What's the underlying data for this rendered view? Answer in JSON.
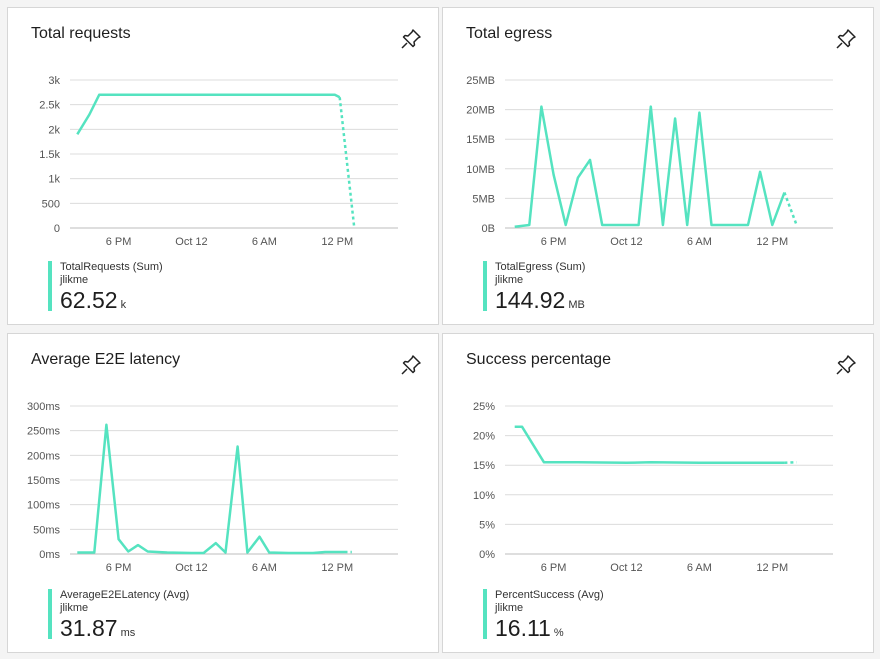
{
  "accent": "#55e3c0",
  "pin_icon": "pin-icon",
  "tiles": [
    {
      "title": "Total requests",
      "legend": {
        "series": "TotalRequests (Sum)",
        "resource": "jlikme",
        "value": "62.52",
        "unit": "k"
      },
      "chart_data": {
        "type": "line",
        "y_ticks": [
          "3k",
          "2.5k",
          "2k",
          "1.5k",
          "1k",
          "500",
          "0"
        ],
        "y_values": [
          3000,
          2500,
          2000,
          1500,
          1000,
          500,
          0
        ],
        "ylim": [
          0,
          3000
        ],
        "x_ticks": [
          "6 PM",
          "Oct 12",
          "6 AM",
          "12 PM"
        ],
        "x_tick_pos": [
          2,
          5,
          8,
          11
        ],
        "xlim": [
          0,
          13.5
        ],
        "series": [
          {
            "points": [
              [
                0.3,
                1900
              ],
              [
                0.8,
                2300
              ],
              [
                1.2,
                2700
              ],
              [
                2,
                2700
              ],
              [
                5,
                2700
              ],
              [
                8,
                2700
              ],
              [
                10,
                2700
              ],
              [
                10.9,
                2700
              ],
              [
                11.1,
                2650
              ]
            ],
            "dashed": [
              [
                11.1,
                2650
              ],
              [
                11.7,
                0
              ]
            ]
          }
        ],
        "grid": true
      }
    },
    {
      "title": "Total egress",
      "legend": {
        "series": "TotalEgress (Sum)",
        "resource": "jlikme",
        "value": "144.92",
        "unit": "MB"
      },
      "chart_data": {
        "type": "line",
        "y_ticks": [
          "25MB",
          "20MB",
          "15MB",
          "10MB",
          "5MB",
          "0B"
        ],
        "y_values": [
          25,
          20,
          15,
          10,
          5,
          0
        ],
        "ylim": [
          0,
          25
        ],
        "x_ticks": [
          "6 PM",
          "Oct 12",
          "6 AM",
          "12 PM"
        ],
        "x_tick_pos": [
          2,
          5,
          8,
          11
        ],
        "xlim": [
          0,
          13.5
        ],
        "series": [
          {
            "points": [
              [
                0.4,
                0.2
              ],
              [
                1.0,
                0.5
              ],
              [
                1.5,
                20.5
              ],
              [
                2.0,
                9
              ],
              [
                2.5,
                0.5
              ],
              [
                3.0,
                8.5
              ],
              [
                3.5,
                11.5
              ],
              [
                4.0,
                0.5
              ],
              [
                4.5,
                0.5
              ],
              [
                5,
                0.5
              ],
              [
                5.5,
                0.5
              ],
              [
                6.0,
                20.5
              ],
              [
                6.5,
                0.5
              ],
              [
                7.0,
                18.5
              ],
              [
                7.5,
                0.5
              ],
              [
                8.0,
                19.5
              ],
              [
                8.5,
                0.5
              ],
              [
                9,
                0.5
              ],
              [
                9.5,
                0.5
              ],
              [
                10.0,
                0.5
              ],
              [
                10.5,
                9.5
              ],
              [
                11.0,
                0.5
              ],
              [
                11.5,
                6
              ]
            ],
            "dashed": [
              [
                11.5,
                6
              ],
              [
                12.0,
                0.5
              ]
            ]
          }
        ],
        "grid": true
      }
    },
    {
      "title": "Average E2E latency",
      "legend": {
        "series": "AverageE2ELatency (Avg)",
        "resource": "jlikme",
        "value": "31.87",
        "unit": "ms"
      },
      "chart_data": {
        "type": "line",
        "y_ticks": [
          "300ms",
          "250ms",
          "200ms",
          "150ms",
          "100ms",
          "50ms",
          "0ms"
        ],
        "y_values": [
          300,
          250,
          200,
          150,
          100,
          50,
          0
        ],
        "ylim": [
          0,
          300
        ],
        "x_ticks": [
          "6 PM",
          "Oct 12",
          "6 AM",
          "12 PM"
        ],
        "x_tick_pos": [
          2,
          5,
          8,
          11
        ],
        "xlim": [
          0,
          13.5
        ],
        "series": [
          {
            "points": [
              [
                0.3,
                3
              ],
              [
                1.0,
                3
              ],
              [
                1.5,
                262
              ],
              [
                2.0,
                30
              ],
              [
                2.4,
                5
              ],
              [
                2.8,
                18
              ],
              [
                3.2,
                5
              ],
              [
                4,
                3
              ],
              [
                5,
                2
              ],
              [
                5.5,
                2
              ],
              [
                6.0,
                22
              ],
              [
                6.4,
                3
              ],
              [
                6.9,
                218
              ],
              [
                7.3,
                3
              ],
              [
                7.8,
                35
              ],
              [
                8.2,
                3
              ],
              [
                9,
                2
              ],
              [
                10,
                2
              ],
              [
                10.5,
                4
              ],
              [
                11.3,
                4
              ]
            ],
            "dashed": [
              [
                11.3,
                4
              ],
              [
                11.6,
                4
              ]
            ]
          }
        ],
        "grid": true
      }
    },
    {
      "title": "Success percentage",
      "legend": {
        "series": "PercentSuccess (Avg)",
        "resource": "jlikme",
        "value": "16.11",
        "unit": "%"
      },
      "chart_data": {
        "type": "line",
        "y_ticks": [
          "25%",
          "20%",
          "15%",
          "10%",
          "5%",
          "0%"
        ],
        "y_values": [
          25,
          20,
          15,
          10,
          5,
          0
        ],
        "ylim": [
          0,
          25
        ],
        "x_ticks": [
          "6 PM",
          "Oct 12",
          "6 AM",
          "12 PM"
        ],
        "x_tick_pos": [
          2,
          5,
          8,
          11
        ],
        "xlim": [
          0,
          13.5
        ],
        "series": [
          {
            "points": [
              [
                0.4,
                21.5
              ],
              [
                0.7,
                21.5
              ],
              [
                1.6,
                15.5
              ],
              [
                3,
                15.5
              ],
              [
                5,
                15.4
              ],
              [
                6,
                15.5
              ],
              [
                8,
                15.4
              ],
              [
                10,
                15.4
              ],
              [
                11.5,
                15.4
              ]
            ],
            "dashed": [
              [
                11.5,
                15.4
              ],
              [
                12,
                15.5
              ]
            ]
          }
        ],
        "grid": true
      }
    }
  ]
}
